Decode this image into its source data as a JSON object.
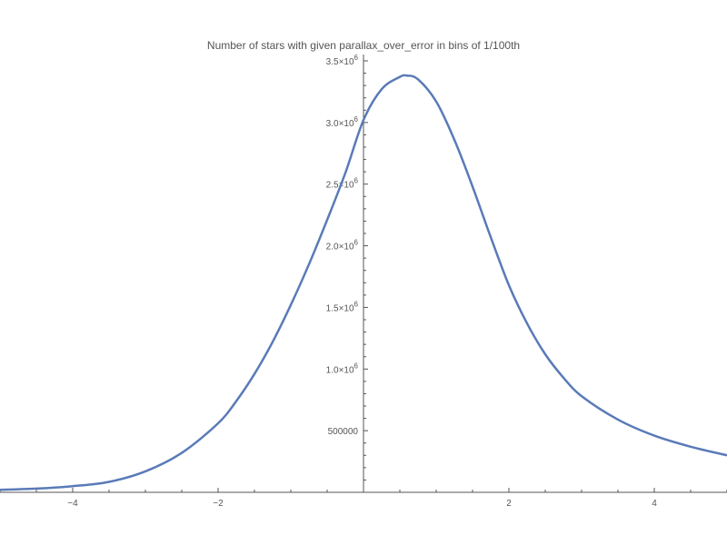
{
  "chart_data": {
    "type": "line",
    "title": "Number of stars with given parallax_over_error in bins of 1/100th",
    "xlabel": "",
    "ylabel": "",
    "xlim": [
      -5,
      5
    ],
    "ylim": [
      0,
      3500000
    ],
    "grid": false,
    "x_ticks": [
      {
        "value": -4,
        "label": "−4"
      },
      {
        "value": -2,
        "label": "−2"
      },
      {
        "value": 2,
        "label": "2"
      },
      {
        "value": 4,
        "label": "4"
      }
    ],
    "y_ticks": [
      {
        "value": 500000,
        "mantissa": "500000",
        "exp": ""
      },
      {
        "value": 1000000,
        "mantissa": "1.0×10",
        "exp": "6"
      },
      {
        "value": 1500000,
        "mantissa": "1.5×10",
        "exp": "6"
      },
      {
        "value": 2000000,
        "mantissa": "2.0×10",
        "exp": "6"
      },
      {
        "value": 2500000,
        "mantissa": "2.5×10",
        "exp": "6"
      },
      {
        "value": 3000000,
        "mantissa": "3.0×10",
        "exp": "6"
      },
      {
        "value": 3500000,
        "mantissa": "3.5×10",
        "exp": "6"
      }
    ],
    "series": [
      {
        "color": "#5a7ab8",
        "x": [
          -5,
          -4.5,
          -4,
          -3.5,
          -3,
          -2.5,
          -2,
          -1.75,
          -1.5,
          -1.25,
          -1,
          -0.75,
          -0.5,
          -0.25,
          0,
          0.25,
          0.5,
          0.6,
          0.75,
          1,
          1.25,
          1.5,
          1.75,
          2,
          2.25,
          2.5,
          2.75,
          3,
          3.5,
          4,
          4.5,
          5
        ],
        "y": [
          20000,
          30000,
          50000,
          85000,
          170000,
          320000,
          560000,
          740000,
          960000,
          1220000,
          1520000,
          1850000,
          2210000,
          2590000,
          3020000,
          3270000,
          3370000,
          3380000,
          3350000,
          3170000,
          2860000,
          2480000,
          2070000,
          1680000,
          1370000,
          1120000,
          930000,
          780000,
          590000,
          460000,
          370000,
          300000
        ]
      }
    ]
  }
}
